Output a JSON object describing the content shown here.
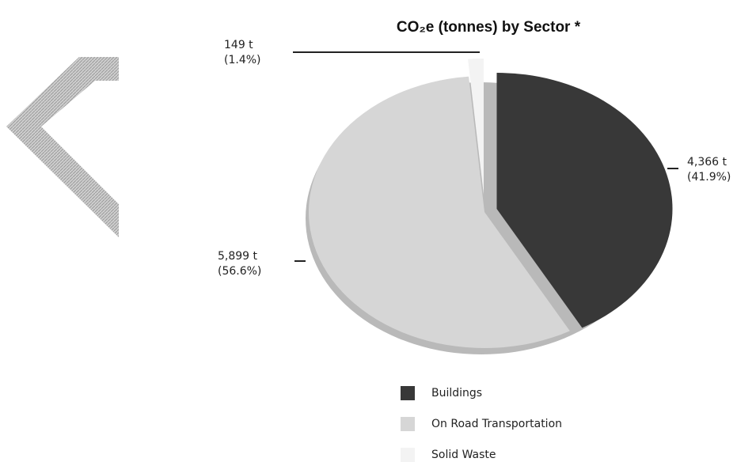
{
  "chart_data": {
    "type": "pie",
    "title": "CO₂e (tonnes) by Sector *",
    "categories": [
      "Buildings",
      "On Road Transportation",
      "Solid Waste"
    ],
    "values": [
      4366,
      5899,
      149
    ],
    "value_labels": [
      "4,366 t",
      "5,899 t",
      "149 t"
    ],
    "percent_labels": [
      "(41.9%)",
      "(56.6%)",
      "(1.4%)"
    ],
    "colors": [
      "#383838",
      "#d6d6d6",
      "#f3f3f3"
    ]
  }
}
